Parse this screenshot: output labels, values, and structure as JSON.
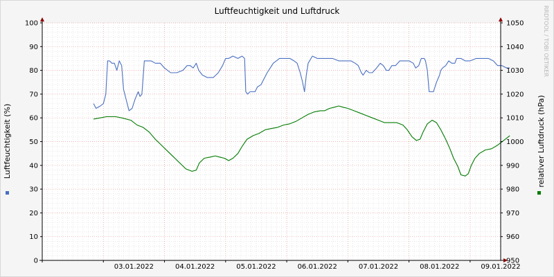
{
  "chart_data": {
    "type": "line",
    "title": "Luftfeuchtigkeit und Luftdruck",
    "watermark": "RRDTOOL / TOBI OETIKER",
    "y_left": {
      "label": "Luftfeuchtigkeit (%)",
      "min": 0,
      "max": 100,
      "ticks": [
        0,
        10,
        20,
        30,
        40,
        50,
        60,
        70,
        80,
        90,
        100
      ]
    },
    "y_right": {
      "label": "relativer Luftdruck (hPa)",
      "min": 950,
      "max": 1050,
      "ticks": [
        950,
        960,
        970,
        980,
        990,
        1000,
        1010,
        1020,
        1030,
        1040,
        1050
      ]
    },
    "x_range_days": [
      2.0,
      9.5
    ],
    "x_ticks": [
      {
        "day": 3.5,
        "label": "03.01.2022"
      },
      {
        "day": 4.5,
        "label": "04.01.2022"
      },
      {
        "day": 5.5,
        "label": "05.01.2022"
      },
      {
        "day": 6.5,
        "label": "06.01.2022"
      },
      {
        "day": 7.5,
        "label": "07.01.2022"
      },
      {
        "day": 8.5,
        "label": "08.01.2022"
      },
      {
        "day": 9.5,
        "label": "09.01.2022"
      }
    ],
    "series": [
      {
        "axis": "left",
        "color": "#4a6fc1",
        "points": [
          [
            2.84,
            66
          ],
          [
            2.88,
            64
          ],
          [
            2.95,
            65
          ],
          [
            3.0,
            66
          ],
          [
            3.04,
            70
          ],
          [
            3.07,
            84
          ],
          [
            3.1,
            84
          ],
          [
            3.14,
            83
          ],
          [
            3.18,
            83
          ],
          [
            3.22,
            80
          ],
          [
            3.26,
            84
          ],
          [
            3.3,
            82
          ],
          [
            3.33,
            72
          ],
          [
            3.37,
            68
          ],
          [
            3.42,
            63
          ],
          [
            3.47,
            64
          ],
          [
            3.52,
            68
          ],
          [
            3.57,
            71
          ],
          [
            3.6,
            69
          ],
          [
            3.63,
            70
          ],
          [
            3.67,
            84
          ],
          [
            3.7,
            84
          ],
          [
            3.78,
            84
          ],
          [
            3.85,
            83
          ],
          [
            3.93,
            83
          ],
          [
            4.0,
            81
          ],
          [
            4.1,
            79
          ],
          [
            4.2,
            79
          ],
          [
            4.3,
            80
          ],
          [
            4.37,
            82
          ],
          [
            4.42,
            82
          ],
          [
            4.47,
            81
          ],
          [
            4.52,
            83
          ],
          [
            4.56,
            80
          ],
          [
            4.62,
            78
          ],
          [
            4.7,
            77
          ],
          [
            4.8,
            77
          ],
          [
            4.88,
            79
          ],
          [
            4.95,
            82
          ],
          [
            5.0,
            85
          ],
          [
            5.05,
            85
          ],
          [
            5.12,
            86
          ],
          [
            5.2,
            85
          ],
          [
            5.27,
            86
          ],
          [
            5.31,
            85
          ],
          [
            5.33,
            71
          ],
          [
            5.36,
            70
          ],
          [
            5.4,
            71
          ],
          [
            5.48,
            71
          ],
          [
            5.52,
            73
          ],
          [
            5.58,
            74
          ],
          [
            5.62,
            76
          ],
          [
            5.68,
            79
          ],
          [
            5.73,
            81
          ],
          [
            5.78,
            83
          ],
          [
            5.83,
            84
          ],
          [
            5.88,
            85
          ],
          [
            5.95,
            85
          ],
          [
            6.05,
            85
          ],
          [
            6.12,
            84
          ],
          [
            6.17,
            83
          ],
          [
            6.22,
            79
          ],
          [
            6.26,
            75
          ],
          [
            6.29,
            71
          ],
          [
            6.32,
            78
          ],
          [
            6.35,
            83
          ],
          [
            6.42,
            86
          ],
          [
            6.5,
            85
          ],
          [
            6.57,
            85
          ],
          [
            6.65,
            85
          ],
          [
            6.75,
            85
          ],
          [
            6.85,
            84
          ],
          [
            6.95,
            84
          ],
          [
            7.05,
            84
          ],
          [
            7.12,
            83
          ],
          [
            7.17,
            82
          ],
          [
            7.22,
            79
          ],
          [
            7.25,
            78
          ],
          [
            7.3,
            80
          ],
          [
            7.35,
            79
          ],
          [
            7.4,
            79
          ],
          [
            7.47,
            81
          ],
          [
            7.53,
            83
          ],
          [
            7.58,
            82
          ],
          [
            7.63,
            80
          ],
          [
            7.67,
            80
          ],
          [
            7.72,
            82
          ],
          [
            7.78,
            82
          ],
          [
            7.85,
            84
          ],
          [
            7.92,
            84
          ],
          [
            8.0,
            84
          ],
          [
            8.07,
            83
          ],
          [
            8.11,
            81
          ],
          [
            8.16,
            82
          ],
          [
            8.2,
            85
          ],
          [
            8.25,
            85
          ],
          [
            8.27,
            84
          ],
          [
            8.3,
            80
          ],
          [
            8.33,
            71
          ],
          [
            8.36,
            71
          ],
          [
            8.4,
            71
          ],
          [
            8.45,
            75
          ],
          [
            8.5,
            78
          ],
          [
            8.52,
            80
          ],
          [
            8.55,
            81
          ],
          [
            8.6,
            82
          ],
          [
            8.65,
            84
          ],
          [
            8.7,
            83
          ],
          [
            8.75,
            83
          ],
          [
            8.78,
            85
          ],
          [
            8.85,
            85
          ],
          [
            8.92,
            84
          ],
          [
            9.0,
            84
          ],
          [
            9.1,
            85
          ],
          [
            9.2,
            85
          ],
          [
            9.3,
            85
          ],
          [
            9.38,
            84
          ],
          [
            9.45,
            82
          ],
          [
            9.52,
            82
          ],
          [
            9.6,
            81
          ],
          [
            9.65,
            81
          ]
        ]
      },
      {
        "axis": "right",
        "color": "#007a00",
        "points": [
          [
            2.84,
            1009.5
          ],
          [
            2.95,
            1010
          ],
          [
            3.05,
            1010.5
          ],
          [
            3.2,
            1010.5
          ],
          [
            3.3,
            1010
          ],
          [
            3.45,
            1009
          ],
          [
            3.55,
            1007
          ],
          [
            3.65,
            1006
          ],
          [
            3.75,
            1004
          ],
          [
            3.85,
            1001
          ],
          [
            3.95,
            998.5
          ],
          [
            4.05,
            996
          ],
          [
            4.15,
            993.5
          ],
          [
            4.25,
            991
          ],
          [
            4.35,
            988.5
          ],
          [
            4.45,
            987.5
          ],
          [
            4.52,
            988
          ],
          [
            4.57,
            991
          ],
          [
            4.65,
            993
          ],
          [
            4.75,
            993.5
          ],
          [
            4.83,
            994
          ],
          [
            4.9,
            993.5
          ],
          [
            4.98,
            993
          ],
          [
            5.05,
            992
          ],
          [
            5.12,
            993
          ],
          [
            5.2,
            995
          ],
          [
            5.27,
            998
          ],
          [
            5.35,
            1001
          ],
          [
            5.45,
            1002.5
          ],
          [
            5.55,
            1003.5
          ],
          [
            5.65,
            1005
          ],
          [
            5.75,
            1005.5
          ],
          [
            5.85,
            1006
          ],
          [
            5.95,
            1007
          ],
          [
            6.05,
            1007.5
          ],
          [
            6.15,
            1008.5
          ],
          [
            6.25,
            1010
          ],
          [
            6.35,
            1011.5
          ],
          [
            6.45,
            1012.5
          ],
          [
            6.55,
            1013
          ],
          [
            6.62,
            1013
          ],
          [
            6.7,
            1014
          ],
          [
            6.78,
            1014.5
          ],
          [
            6.85,
            1015
          ],
          [
            6.92,
            1014.5
          ],
          [
            7.0,
            1014
          ],
          [
            7.1,
            1013
          ],
          [
            7.2,
            1012
          ],
          [
            7.3,
            1011
          ],
          [
            7.4,
            1010
          ],
          [
            7.5,
            1009
          ],
          [
            7.6,
            1008
          ],
          [
            7.7,
            1008
          ],
          [
            7.8,
            1008
          ],
          [
            7.9,
            1007
          ],
          [
            7.97,
            1005
          ],
          [
            8.05,
            1002
          ],
          [
            8.12,
            1000.5
          ],
          [
            8.18,
            1001
          ],
          [
            8.23,
            1004
          ],
          [
            8.3,
            1007.5
          ],
          [
            8.38,
            1009
          ],
          [
            8.45,
            1008
          ],
          [
            8.52,
            1005
          ],
          [
            8.6,
            1001
          ],
          [
            8.67,
            997
          ],
          [
            8.73,
            993
          ],
          [
            8.8,
            989.5
          ],
          [
            8.85,
            986
          ],
          [
            8.92,
            985.5
          ],
          [
            8.97,
            986.5
          ],
          [
            9.02,
            990
          ],
          [
            9.08,
            993
          ],
          [
            9.15,
            995
          ],
          [
            9.25,
            996.5
          ],
          [
            9.35,
            997
          ],
          [
            9.45,
            998.5
          ],
          [
            9.55,
            1000.5
          ],
          [
            9.65,
            1002.5
          ]
        ]
      }
    ],
    "legend": [
      {
        "side": "left",
        "color": "#4a6fc1"
      },
      {
        "side": "right",
        "color": "#007a00"
      }
    ]
  }
}
